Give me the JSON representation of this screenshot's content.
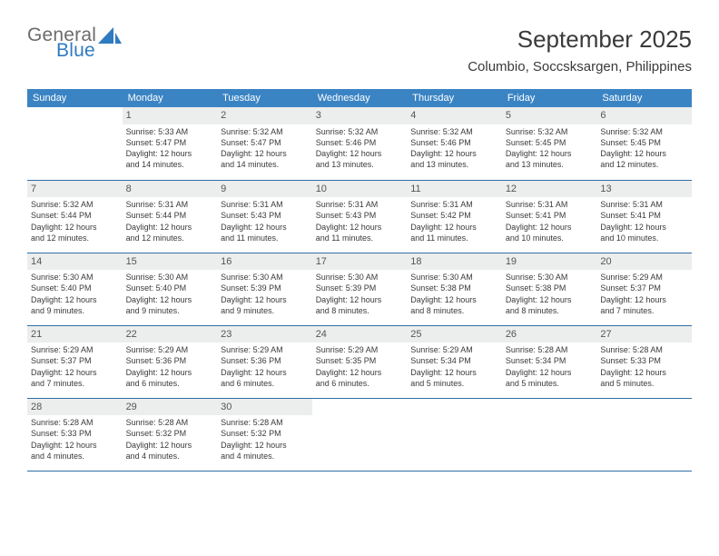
{
  "logo": {
    "text1": "General",
    "text2": "Blue",
    "text1_color": "#6b6b6b",
    "text2_color": "#2f7bbf",
    "icon_color": "#2f7bbf"
  },
  "title": {
    "month": "September 2025",
    "location": "Columbio, Soccsksargen, Philippines",
    "color": "#3a3a3a",
    "month_fontsize": 26,
    "location_fontsize": 15
  },
  "calendar": {
    "header_bg": "#3b84c4",
    "header_fg": "#ffffff",
    "border_color": "#2f6fa8",
    "daynum_bg": "#eceded",
    "text_color": "#3a3a3a",
    "cell_fontsize": 9,
    "daynames": [
      "Sunday",
      "Monday",
      "Tuesday",
      "Wednesday",
      "Thursday",
      "Friday",
      "Saturday"
    ]
  },
  "days": {
    "1": {
      "sunrise": "Sunrise: 5:33 AM",
      "sunset": "Sunset: 5:47 PM",
      "dayl1": "Daylight: 12 hours",
      "dayl2": "and 14 minutes."
    },
    "2": {
      "sunrise": "Sunrise: 5:32 AM",
      "sunset": "Sunset: 5:47 PM",
      "dayl1": "Daylight: 12 hours",
      "dayl2": "and 14 minutes."
    },
    "3": {
      "sunrise": "Sunrise: 5:32 AM",
      "sunset": "Sunset: 5:46 PM",
      "dayl1": "Daylight: 12 hours",
      "dayl2": "and 13 minutes."
    },
    "4": {
      "sunrise": "Sunrise: 5:32 AM",
      "sunset": "Sunset: 5:46 PM",
      "dayl1": "Daylight: 12 hours",
      "dayl2": "and 13 minutes."
    },
    "5": {
      "sunrise": "Sunrise: 5:32 AM",
      "sunset": "Sunset: 5:45 PM",
      "dayl1": "Daylight: 12 hours",
      "dayl2": "and 13 minutes."
    },
    "6": {
      "sunrise": "Sunrise: 5:32 AM",
      "sunset": "Sunset: 5:45 PM",
      "dayl1": "Daylight: 12 hours",
      "dayl2": "and 12 minutes."
    },
    "7": {
      "sunrise": "Sunrise: 5:32 AM",
      "sunset": "Sunset: 5:44 PM",
      "dayl1": "Daylight: 12 hours",
      "dayl2": "and 12 minutes."
    },
    "8": {
      "sunrise": "Sunrise: 5:31 AM",
      "sunset": "Sunset: 5:44 PM",
      "dayl1": "Daylight: 12 hours",
      "dayl2": "and 12 minutes."
    },
    "9": {
      "sunrise": "Sunrise: 5:31 AM",
      "sunset": "Sunset: 5:43 PM",
      "dayl1": "Daylight: 12 hours",
      "dayl2": "and 11 minutes."
    },
    "10": {
      "sunrise": "Sunrise: 5:31 AM",
      "sunset": "Sunset: 5:43 PM",
      "dayl1": "Daylight: 12 hours",
      "dayl2": "and 11 minutes."
    },
    "11": {
      "sunrise": "Sunrise: 5:31 AM",
      "sunset": "Sunset: 5:42 PM",
      "dayl1": "Daylight: 12 hours",
      "dayl2": "and 11 minutes."
    },
    "12": {
      "sunrise": "Sunrise: 5:31 AM",
      "sunset": "Sunset: 5:41 PM",
      "dayl1": "Daylight: 12 hours",
      "dayl2": "and 10 minutes."
    },
    "13": {
      "sunrise": "Sunrise: 5:31 AM",
      "sunset": "Sunset: 5:41 PM",
      "dayl1": "Daylight: 12 hours",
      "dayl2": "and 10 minutes."
    },
    "14": {
      "sunrise": "Sunrise: 5:30 AM",
      "sunset": "Sunset: 5:40 PM",
      "dayl1": "Daylight: 12 hours",
      "dayl2": "and 9 minutes."
    },
    "15": {
      "sunrise": "Sunrise: 5:30 AM",
      "sunset": "Sunset: 5:40 PM",
      "dayl1": "Daylight: 12 hours",
      "dayl2": "and 9 minutes."
    },
    "16": {
      "sunrise": "Sunrise: 5:30 AM",
      "sunset": "Sunset: 5:39 PM",
      "dayl1": "Daylight: 12 hours",
      "dayl2": "and 9 minutes."
    },
    "17": {
      "sunrise": "Sunrise: 5:30 AM",
      "sunset": "Sunset: 5:39 PM",
      "dayl1": "Daylight: 12 hours",
      "dayl2": "and 8 minutes."
    },
    "18": {
      "sunrise": "Sunrise: 5:30 AM",
      "sunset": "Sunset: 5:38 PM",
      "dayl1": "Daylight: 12 hours",
      "dayl2": "and 8 minutes."
    },
    "19": {
      "sunrise": "Sunrise: 5:30 AM",
      "sunset": "Sunset: 5:38 PM",
      "dayl1": "Daylight: 12 hours",
      "dayl2": "and 8 minutes."
    },
    "20": {
      "sunrise": "Sunrise: 5:29 AM",
      "sunset": "Sunset: 5:37 PM",
      "dayl1": "Daylight: 12 hours",
      "dayl2": "and 7 minutes."
    },
    "21": {
      "sunrise": "Sunrise: 5:29 AM",
      "sunset": "Sunset: 5:37 PM",
      "dayl1": "Daylight: 12 hours",
      "dayl2": "and 7 minutes."
    },
    "22": {
      "sunrise": "Sunrise: 5:29 AM",
      "sunset": "Sunset: 5:36 PM",
      "dayl1": "Daylight: 12 hours",
      "dayl2": "and 6 minutes."
    },
    "23": {
      "sunrise": "Sunrise: 5:29 AM",
      "sunset": "Sunset: 5:36 PM",
      "dayl1": "Daylight: 12 hours",
      "dayl2": "and 6 minutes."
    },
    "24": {
      "sunrise": "Sunrise: 5:29 AM",
      "sunset": "Sunset: 5:35 PM",
      "dayl1": "Daylight: 12 hours",
      "dayl2": "and 6 minutes."
    },
    "25": {
      "sunrise": "Sunrise: 5:29 AM",
      "sunset": "Sunset: 5:34 PM",
      "dayl1": "Daylight: 12 hours",
      "dayl2": "and 5 minutes."
    },
    "26": {
      "sunrise": "Sunrise: 5:28 AM",
      "sunset": "Sunset: 5:34 PM",
      "dayl1": "Daylight: 12 hours",
      "dayl2": "and 5 minutes."
    },
    "27": {
      "sunrise": "Sunrise: 5:28 AM",
      "sunset": "Sunset: 5:33 PM",
      "dayl1": "Daylight: 12 hours",
      "dayl2": "and 5 minutes."
    },
    "28": {
      "sunrise": "Sunrise: 5:28 AM",
      "sunset": "Sunset: 5:33 PM",
      "dayl1": "Daylight: 12 hours",
      "dayl2": "and 4 minutes."
    },
    "29": {
      "sunrise": "Sunrise: 5:28 AM",
      "sunset": "Sunset: 5:32 PM",
      "dayl1": "Daylight: 12 hours",
      "dayl2": "and 4 minutes."
    },
    "30": {
      "sunrise": "Sunrise: 5:28 AM",
      "sunset": "Sunset: 5:32 PM",
      "dayl1": "Daylight: 12 hours",
      "dayl2": "and 4 minutes."
    }
  },
  "grid": [
    [
      null,
      1,
      2,
      3,
      4,
      5,
      6
    ],
    [
      7,
      8,
      9,
      10,
      11,
      12,
      13
    ],
    [
      14,
      15,
      16,
      17,
      18,
      19,
      20
    ],
    [
      21,
      22,
      23,
      24,
      25,
      26,
      27
    ],
    [
      28,
      29,
      30,
      null,
      null,
      null,
      null
    ]
  ]
}
